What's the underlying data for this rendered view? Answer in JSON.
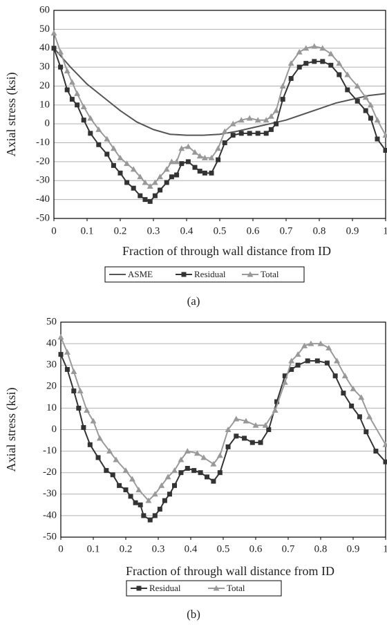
{
  "chart_data": [
    {
      "type": "line",
      "caption": "(a)",
      "x_label": "Fraction of through wall distance from ID",
      "y_label": "Axial stress (ksi)",
      "xlim": [
        0,
        1
      ],
      "xticks": [
        0,
        0.1,
        0.2,
        0.3,
        0.4,
        0.5,
        0.6,
        0.7,
        0.8,
        0.9,
        1
      ],
      "ylim": [
        -50,
        60
      ],
      "yticks": [
        -50,
        -40,
        -30,
        -20,
        -10,
        0,
        10,
        20,
        30,
        40,
        50,
        60
      ],
      "grid": true,
      "series": [
        {
          "name": "ASME",
          "color": "#555555",
          "marker": "none",
          "x": [
            0,
            0.05,
            0.1,
            0.15,
            0.2,
            0.25,
            0.3,
            0.35,
            0.4,
            0.45,
            0.5,
            0.55,
            0.6,
            0.65,
            0.7,
            0.75,
            0.8,
            0.85,
            0.9,
            0.95,
            1
          ],
          "values": [
            40,
            30,
            21,
            14,
            7,
            1,
            -3,
            -5.5,
            -6,
            -6,
            -5.5,
            -4,
            -2,
            0,
            2,
            5,
            8,
            11,
            13,
            15,
            16
          ]
        },
        {
          "name": "Residual",
          "color": "#333333",
          "marker": "square",
          "x": [
            0,
            0.02,
            0.04,
            0.055,
            0.07,
            0.09,
            0.11,
            0.135,
            0.16,
            0.18,
            0.2,
            0.22,
            0.24,
            0.26,
            0.275,
            0.29,
            0.305,
            0.32,
            0.34,
            0.355,
            0.37,
            0.385,
            0.405,
            0.425,
            0.44,
            0.455,
            0.475,
            0.495,
            0.515,
            0.54,
            0.565,
            0.59,
            0.615,
            0.64,
            0.655,
            0.67,
            0.69,
            0.715,
            0.74,
            0.76,
            0.785,
            0.81,
            0.835,
            0.86,
            0.885,
            0.915,
            0.94,
            0.955,
            0.975,
            1
          ],
          "values": [
            40,
            30,
            18,
            13,
            10,
            2,
            -5,
            -11,
            -16,
            -22,
            -26,
            -31,
            -34,
            -38,
            -40,
            -41,
            -38,
            -35,
            -31,
            -28,
            -27,
            -21,
            -20,
            -23,
            -25,
            -26,
            -26,
            -19,
            -10,
            -6,
            -5,
            -5,
            -5,
            -5,
            -3,
            0,
            13,
            24,
            30,
            32,
            33,
            33,
            31,
            26,
            18,
            12,
            7,
            3,
            -8,
            -14
          ]
        },
        {
          "name": "Total",
          "color": "#999999",
          "marker": "triangle",
          "x": [
            0,
            0.02,
            0.04,
            0.055,
            0.07,
            0.09,
            0.11,
            0.135,
            0.16,
            0.18,
            0.2,
            0.22,
            0.24,
            0.26,
            0.275,
            0.29,
            0.305,
            0.32,
            0.34,
            0.355,
            0.37,
            0.385,
            0.405,
            0.425,
            0.44,
            0.455,
            0.475,
            0.495,
            0.515,
            0.54,
            0.565,
            0.59,
            0.615,
            0.64,
            0.655,
            0.67,
            0.69,
            0.715,
            0.74,
            0.76,
            0.785,
            0.81,
            0.835,
            0.86,
            0.885,
            0.915,
            0.94,
            0.955,
            0.975,
            1
          ],
          "values": [
            48,
            38,
            28,
            22,
            16,
            9,
            3,
            -3,
            -8,
            -13,
            -18,
            -21,
            -24,
            -28,
            -31,
            -33,
            -31,
            -28,
            -24,
            -20,
            -20,
            -13,
            -12,
            -15,
            -17,
            -18,
            -18,
            -13,
            -4,
            0,
            2,
            3,
            2,
            2,
            4,
            7,
            20,
            32,
            38,
            40,
            41,
            40,
            37,
            32,
            26,
            20,
            14,
            10,
            2,
            -6
          ]
        }
      ]
    },
    {
      "type": "line",
      "caption": "(b)",
      "x_label": "Fraction of through wall distance from ID",
      "y_label": "Axial stress (ksi)",
      "xlim": [
        0,
        1
      ],
      "xticks": [
        0,
        0.1,
        0.2,
        0.3,
        0.4,
        0.5,
        0.6,
        0.7,
        0.8,
        0.9,
        1
      ],
      "ylim": [
        -50,
        50
      ],
      "yticks": [
        -50,
        -40,
        -30,
        -20,
        -10,
        0,
        10,
        20,
        30,
        40,
        50
      ],
      "grid": true,
      "series": [
        {
          "name": "Residual",
          "color": "#333333",
          "marker": "square",
          "x": [
            0,
            0.02,
            0.04,
            0.055,
            0.07,
            0.09,
            0.115,
            0.14,
            0.16,
            0.18,
            0.2,
            0.215,
            0.23,
            0.245,
            0.255,
            0.275,
            0.29,
            0.305,
            0.32,
            0.335,
            0.35,
            0.37,
            0.39,
            0.41,
            0.43,
            0.45,
            0.47,
            0.49,
            0.515,
            0.54,
            0.565,
            0.59,
            0.615,
            0.64,
            0.665,
            0.69,
            0.71,
            0.73,
            0.76,
            0.79,
            0.82,
            0.845,
            0.87,
            0.895,
            0.92,
            0.94,
            0.97,
            1
          ],
          "values": [
            35,
            28,
            18,
            10,
            1,
            -7,
            -13,
            -19,
            -21,
            -26,
            -28,
            -31,
            -34,
            -35,
            -40,
            -42,
            -40,
            -37,
            -33,
            -30,
            -26,
            -20,
            -18,
            -19,
            -20,
            -22,
            -24,
            -20,
            -8,
            -3,
            -4,
            -6,
            -6,
            0,
            13,
            25,
            28,
            30,
            32,
            32,
            31,
            25,
            17,
            11,
            6,
            -1,
            -10,
            -15
          ]
        },
        {
          "name": "Total",
          "color": "#999999",
          "marker": "triangle",
          "x": [
            0,
            0.02,
            0.04,
            0.06,
            0.08,
            0.1,
            0.12,
            0.15,
            0.17,
            0.2,
            0.22,
            0.24,
            0.27,
            0.29,
            0.31,
            0.33,
            0.35,
            0.37,
            0.39,
            0.42,
            0.44,
            0.47,
            0.49,
            0.515,
            0.54,
            0.57,
            0.6,
            0.63,
            0.66,
            0.69,
            0.71,
            0.73,
            0.75,
            0.77,
            0.8,
            0.825,
            0.85,
            0.875,
            0.9,
            0.925,
            0.95,
            1
          ],
          "values": [
            43,
            36,
            27,
            18,
            9,
            4,
            -4,
            -10,
            -14,
            -19,
            -23,
            -28,
            -33,
            -30,
            -26,
            -22,
            -19,
            -14,
            -10,
            -11,
            -13,
            -16,
            -12,
            0,
            5,
            4,
            2,
            2,
            9,
            22,
            32,
            35,
            39,
            40,
            40,
            38,
            32,
            25,
            19,
            15,
            6,
            -7
          ]
        }
      ]
    }
  ]
}
